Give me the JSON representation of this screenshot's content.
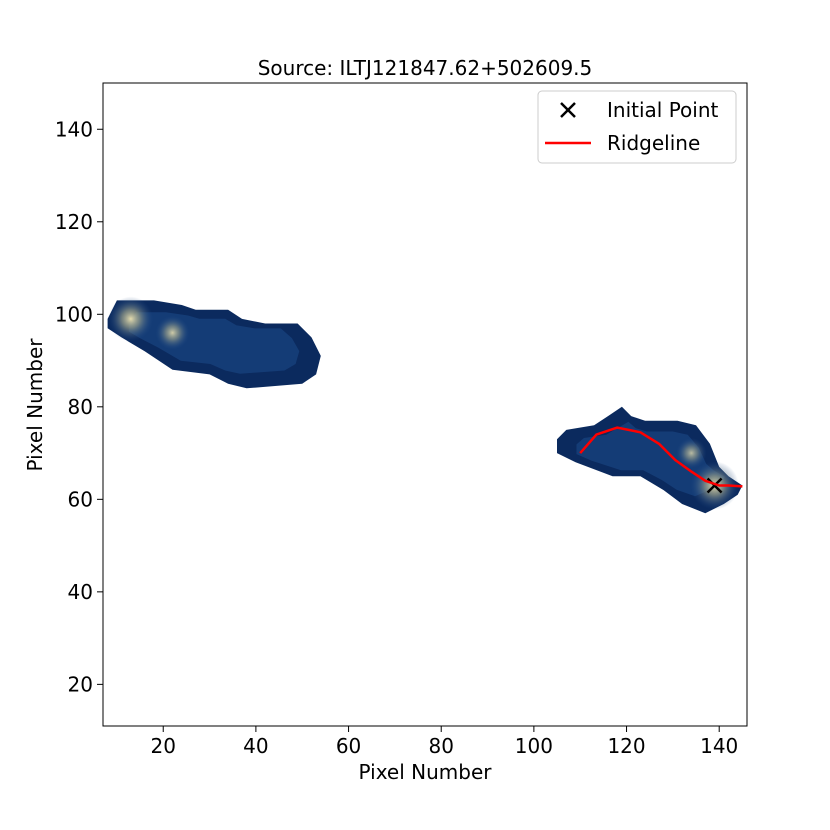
{
  "chart_data": {
    "type": "scatter",
    "title": "Source: ILTJ121847.62+502609.5",
    "xlabel": "Pixel Number",
    "ylabel": "Pixel Number",
    "xlim": [
      7,
      146
    ],
    "ylim": [
      11,
      150
    ],
    "xticks": [
      20,
      40,
      60,
      80,
      100,
      120,
      140
    ],
    "yticks": [
      20,
      40,
      60,
      80,
      100,
      120,
      140
    ],
    "grid": false,
    "legend_location": "upper right",
    "legend": [
      {
        "label": "Initial Point",
        "marker": "x",
        "color": "#000000"
      },
      {
        "label": "Ridgeline",
        "marker": "line",
        "color": "#ff0000"
      }
    ],
    "background_image": {
      "description": "emission map (colormap dark blue to pale yellow) with two blobs",
      "colors": {
        "low": "#0b2a5e",
        "mid": "#1e4a8a",
        "high": "#d8cfa0"
      },
      "blobs": [
        {
          "name": "left-lobe",
          "outline": [
            [
              8,
              99
            ],
            [
              10,
              103
            ],
            [
              18,
              103
            ],
            [
              24,
              102
            ],
            [
              27,
              101
            ],
            [
              34,
              101
            ],
            [
              37,
              99
            ],
            [
              42,
              98
            ],
            [
              49,
              98
            ],
            [
              52,
              95
            ],
            [
              54,
              91
            ],
            [
              53,
              87
            ],
            [
              50,
              85
            ],
            [
              38,
              84
            ],
            [
              34,
              85
            ],
            [
              30,
              87
            ],
            [
              22,
              88
            ],
            [
              16,
              92
            ],
            [
              11,
              95
            ],
            [
              8,
              97
            ]
          ],
          "peaks": [
            {
              "x": 13,
              "y": 99,
              "intensity": 0.8
            },
            {
              "x": 22,
              "y": 96,
              "intensity": 0.5
            }
          ]
        },
        {
          "name": "right-lobe",
          "outline": [
            [
              105,
              73
            ],
            [
              107,
              75
            ],
            [
              113,
              76
            ],
            [
              116,
              78
            ],
            [
              119,
              80
            ],
            [
              121,
              78
            ],
            [
              124,
              77
            ],
            [
              131,
              77
            ],
            [
              135,
              76
            ],
            [
              138,
              72
            ],
            [
              140,
              67
            ],
            [
              142,
              65
            ],
            [
              145,
              63
            ],
            [
              144,
              61
            ],
            [
              141,
              59
            ],
            [
              137,
              57
            ],
            [
              132,
              59
            ],
            [
              128,
              62
            ],
            [
              123,
              65
            ],
            [
              117,
              65
            ],
            [
              109,
              68
            ],
            [
              105,
              70
            ]
          ],
          "peaks": [
            {
              "x": 139,
              "y": 63,
              "intensity": 0.9
            },
            {
              "x": 134,
              "y": 70,
              "intensity": 0.4
            }
          ]
        }
      ]
    },
    "series": [
      {
        "name": "Initial Point",
        "type": "scatter",
        "marker": "x",
        "color": "#000000",
        "x": [
          139
        ],
        "y": [
          63
        ]
      },
      {
        "name": "Ridgeline",
        "type": "line",
        "color": "#ff0000",
        "x": [
          110,
          113.5,
          118,
          123,
          127,
          130.5,
          134,
          137,
          140,
          142,
          145
        ],
        "y": [
          70,
          74,
          75.5,
          74.5,
          72,
          68.5,
          66,
          64,
          63,
          63,
          62.8
        ]
      }
    ]
  }
}
